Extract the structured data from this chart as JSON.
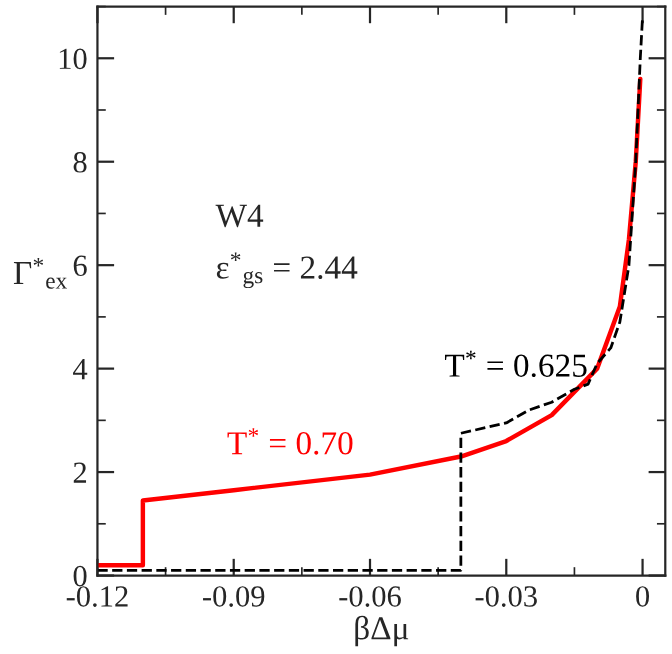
{
  "chart_data": {
    "type": "line",
    "xlabel": "βΔμ",
    "ylabel": "Γ$^{*}$$_{ex}$",
    "annotations": [
      "W4",
      "ε$^{*}$$_{gs}$ = 2.44"
    ],
    "series": [
      {
        "name": "T$^{*}$ = 0.70",
        "color": "#ff0000",
        "line_style": "solid",
        "x": [
          -0.12,
          -0.11,
          -0.11,
          -0.09,
          -0.06,
          -0.04,
          -0.03,
          -0.02,
          -0.01,
          -0.005,
          -0.003,
          -0.0015,
          -0.0005
        ],
        "values": [
          0.2,
          0.2,
          1.45,
          1.65,
          1.95,
          2.3,
          2.6,
          3.1,
          4.0,
          5.2,
          6.5,
          8.0,
          9.6
        ]
      },
      {
        "name": "T$^{*}$ = 0.625",
        "color": "#000000",
        "line_style": "dashed",
        "x": [
          -0.12,
          -0.04,
          -0.04,
          -0.03,
          -0.025,
          -0.02,
          -0.015,
          -0.012,
          -0.01,
          -0.007,
          -0.005,
          -0.003,
          -0.0015,
          -0.0005,
          0
        ],
        "values": [
          0.1,
          0.1,
          2.75,
          2.95,
          3.2,
          3.35,
          3.6,
          3.7,
          4.1,
          4.4,
          4.9,
          6.0,
          8.0,
          10.0,
          10.8
        ]
      }
    ],
    "xlim": [
      -0.12,
      0.005
    ],
    "xticks": [
      -0.12,
      -0.09,
      -0.06,
      -0.03,
      {
        "value": 0,
        "label": "0"
      }
    ],
    "ylim": [
      0,
      11
    ],
    "yticks": [
      0,
      2,
      4,
      6,
      8,
      10
    ],
    "grid": false,
    "legend": false,
    "marker": "none"
  }
}
